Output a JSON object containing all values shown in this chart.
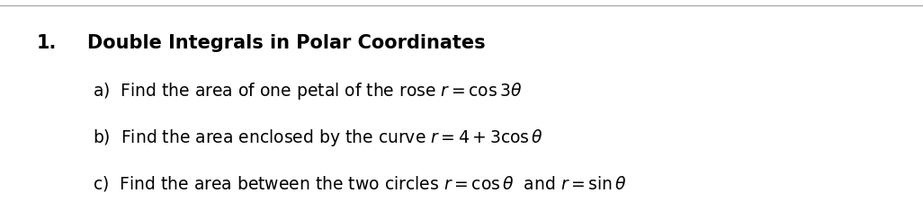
{
  "title_number": "1.",
  "title_text": "Double Integrals in Polar Coordinates",
  "line_a": "a)  Find the area of one petal of the rose $r = \\cos 3\\theta$",
  "line_b": "b)  Find the area enclosed by the curve $r = 4 + 3 \\cos \\theta$",
  "line_c": "c)  Find the area between the two circles $r = \\cos \\theta$  and $r = \\sin \\theta$",
  "bg_color": "#ffffff",
  "text_color": "#000000",
  "title_fontsize": 15,
  "body_fontsize": 13.5,
  "top_line_color": "#aaaaaa",
  "fig_width": 10.26,
  "fig_height": 2.26
}
